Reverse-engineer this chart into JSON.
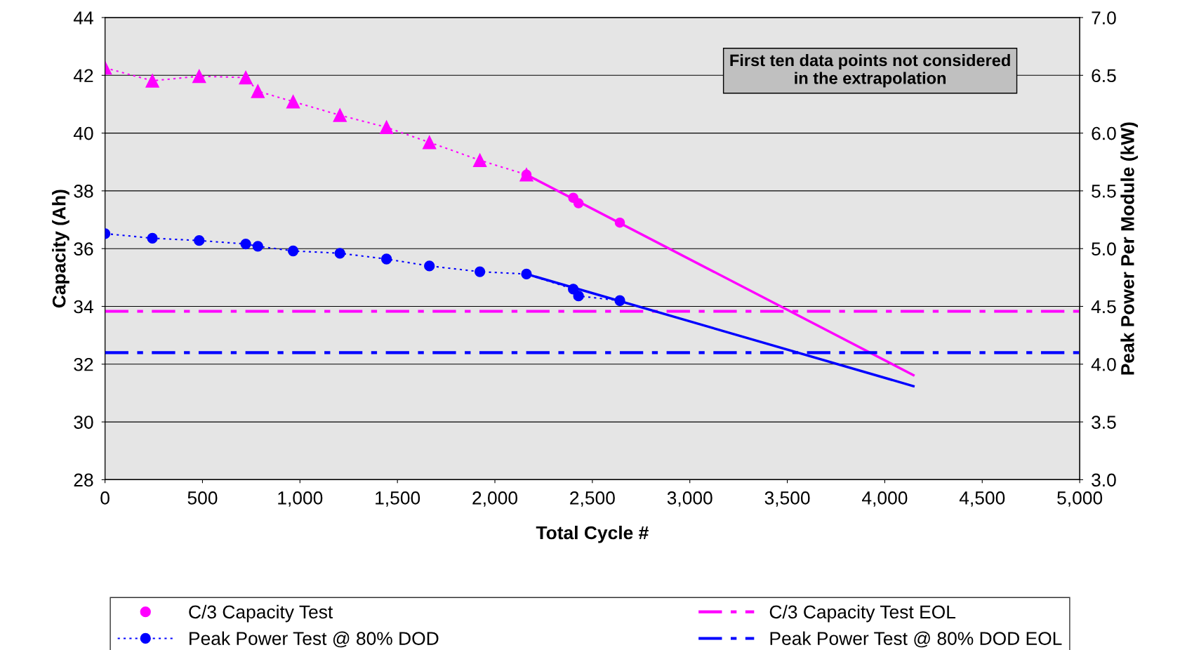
{
  "chart_data": {
    "type": "line",
    "xlabel": "Total Cycle #",
    "ylabel": "Capacity (Ah)",
    "y2label": "Peak Power Per Module (kW)",
    "xlim": [
      0,
      5000
    ],
    "xticks": [
      0,
      {
        "value": 500,
        "label": "500"
      },
      {
        "value": 1000,
        "label": "1,000"
      },
      {
        "value": 1500,
        "label": "1,500"
      },
      {
        "value": 2000,
        "label": "2,000"
      },
      {
        "value": 2500,
        "label": "2,500"
      },
      {
        "value": 3000,
        "label": "3,000"
      },
      {
        "value": 3500,
        "label": "3,500"
      },
      {
        "value": 4000,
        "label": "4,000"
      },
      {
        "value": 4500,
        "label": "4,500"
      },
      {
        "value": 5000,
        "label": "5,000"
      }
    ],
    "ylim": [
      28,
      44
    ],
    "yticks": [
      28,
      30,
      32,
      34,
      36,
      38,
      40,
      42,
      44
    ],
    "y2lim": [
      3.0,
      7.0
    ],
    "y2ticks": [
      {
        "value": 3.0,
        "label": "3.0"
      },
      3.5,
      {
        "value": 4.0,
        "label": "4.0"
      },
      4.5,
      {
        "value": 5.0,
        "label": "5.0"
      },
      5.5,
      {
        "value": 6.0,
        "label": "6.0"
      },
      6.5,
      {
        "value": 7.0,
        "label": "7.0"
      }
    ],
    "grid": "y",
    "legend": "bottom",
    "annotations": [
      "First ten data points not considered in the extrapolation"
    ],
    "series": [
      {
        "color": "#ff00ff",
        "line_style": "dotted",
        "marker": "triangle",
        "x": [
          0,
          243,
          483,
          722,
          784,
          965,
          1205,
          1444,
          1664,
          1923,
          2162
        ],
        "values": [
          42.26,
          41.81,
          41.97,
          41.92,
          41.45,
          41.09,
          40.62,
          40.2,
          39.68,
          39.06,
          38.56
        ]
      },
      {
        "color": "#ff00ff",
        "line_style": "solid",
        "x": [
          2162,
          4147
        ],
        "values": [
          38.56,
          31.62
        ]
      },
      {
        "color": "#0000ff",
        "line_style": "solid",
        "axis": "y2",
        "x": [
          2162,
          4147
        ],
        "values": [
          4.78,
          3.81
        ]
      },
      {
        "type": "scatter",
        "name": "C/3 Capacity Test",
        "color": "#ff00ff",
        "marker": "circle",
        "x": [
          2162,
          2402,
          2429,
          2641
        ],
        "values": [
          38.56,
          37.76,
          37.57,
          36.9
        ]
      },
      {
        "type": "line",
        "name": "Peak Power Test @ 80% DOD",
        "color": "#0000ff",
        "line_style": "dotted",
        "marker": "circle",
        "axis": "y2",
        "x": [
          0,
          243,
          483,
          722,
          784,
          965,
          1205,
          1444,
          1664,
          1923,
          2162,
          2402,
          2429,
          2641
        ],
        "values": [
          5.13,
          5.09,
          5.07,
          5.04,
          5.02,
          4.98,
          4.96,
          4.91,
          4.85,
          4.8,
          4.78,
          4.65,
          4.59,
          4.55
        ]
      },
      {
        "type": "line",
        "name": "C/3 Capacity Test EOL",
        "color": "#ff00ff",
        "line_style": "dashed",
        "marker": "none",
        "x": [
          0,
          5000
        ],
        "values": [
          33.83,
          33.83
        ]
      },
      {
        "type": "line",
        "name": "Peak Power Test @ 80% DOD EOL",
        "color": "#0000ff",
        "line_style": "dashed",
        "marker": "none",
        "axis": "y2",
        "x": [
          0,
          5000
        ],
        "values": [
          4.1,
          4.1
        ]
      }
    ]
  }
}
